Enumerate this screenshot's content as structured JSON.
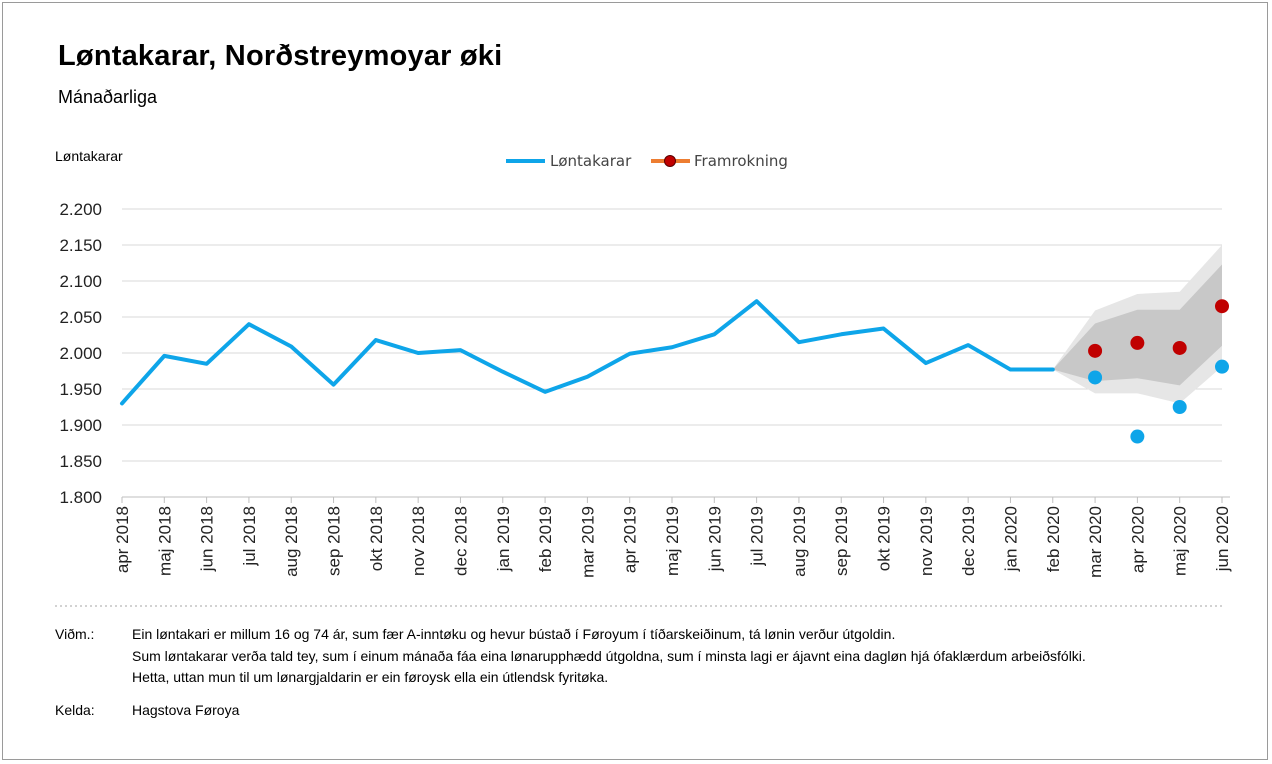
{
  "chart_data": {
    "type": "line",
    "title": "Løntakarar, Norðstreymoyar øki",
    "subtitle": "Mánaðarliga",
    "ylabel": "Løntakarar",
    "ylim": [
      1800,
      2200
    ],
    "yticks": [
      1800,
      1850,
      1900,
      1950,
      2000,
      2050,
      2100,
      2150,
      2200
    ],
    "ytick_labels": [
      "1.800",
      "1.850",
      "1.900",
      "1.950",
      "2.000",
      "2.050",
      "2.100",
      "2.150",
      "2.200"
    ],
    "categories": [
      "apr 2018",
      "maj 2018",
      "jun 2018",
      "jul 2018",
      "aug 2018",
      "sep 2018",
      "okt 2018",
      "nov 2018",
      "dec 2018",
      "jan 2019",
      "feb 2019",
      "mar 2019",
      "apr 2019",
      "maj 2019",
      "jun 2019",
      "jul 2019",
      "aug 2019",
      "sep 2019",
      "okt 2019",
      "nov 2019",
      "dec 2019",
      "jan 2020",
      "feb 2020",
      "mar 2020",
      "apr 2020",
      "maj 2020",
      "jun 2020"
    ],
    "grid": true,
    "legend_position": "top",
    "series": [
      {
        "name": "Løntakarar",
        "color": "#0ea5e9",
        "values": [
          1930,
          1996,
          1985,
          2040,
          2009,
          1956,
          2018,
          2000,
          2004,
          1974,
          1946,
          1967,
          1999,
          2008,
          2026,
          2072,
          2015,
          2026,
          2034,
          1986,
          2011,
          1977,
          1977,
          null,
          null,
          null,
          null
        ],
        "points": [
          {
            "x": "mar 2020",
            "y": 1966
          },
          {
            "x": "apr 2020",
            "y": 1884
          },
          {
            "x": "maj 2020",
            "y": 1925
          },
          {
            "x": "jun 2020",
            "y": 1981
          }
        ]
      },
      {
        "name": "Framrokning",
        "color": "#c00000",
        "legend_line_color": "#ed7d31",
        "points": [
          {
            "x": "mar 2020",
            "y": 2003
          },
          {
            "x": "apr 2020",
            "y": 2014
          },
          {
            "x": "maj 2020",
            "y": 2007
          },
          {
            "x": "jun 2020",
            "y": 2065
          }
        ]
      }
    ],
    "forecast_bands": {
      "x": [
        "feb 2020",
        "mar 2020",
        "apr 2020",
        "maj 2020",
        "jun 2020"
      ],
      "outer": {
        "color": "#e6e6e6",
        "lower": [
          1977,
          1944,
          1944,
          1930,
          1981
        ],
        "upper": [
          1977,
          2059,
          2082,
          2085,
          2150
        ]
      },
      "inner": {
        "color": "#c8c8c8",
        "lower": [
          1977,
          1961,
          1965,
          1955,
          2010
        ],
        "upper": [
          1977,
          2041,
          2060,
          2060,
          2123
        ]
      }
    }
  },
  "notes": {
    "key": "Viðm.:",
    "lines": [
      "Ein løntakari er millum 16 og 74 ár, sum fær A-inntøku og hevur bústað í Føroyum í tíðarskeiðinum, tá lønin verður útgoldin.",
      "Sum løntakarar verða tald tey, sum í einum mánaða fáa eina lønarupphædd útgoldna, sum í minsta lagi er ájavnt eina dagløn hjá ófaklærdum arbeiðsfólki.",
      "Hetta, uttan mun til um lønargjaldarin er ein føroysk ella ein útlendsk fyritøka."
    ]
  },
  "source": {
    "key": "Kelda:",
    "value": "Hagstova Føroya"
  }
}
